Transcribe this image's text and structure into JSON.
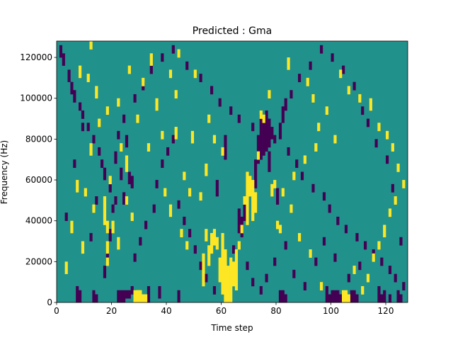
{
  "chart_data": {
    "type": "heatmap",
    "title": "Predicted : Gma",
    "xlabel": "Time step",
    "ylabel": "Frequency (Hz)",
    "xlim": [
      0,
      128
    ],
    "ylim": [
      0,
      128000
    ],
    "x_ticks": [
      0,
      20,
      40,
      60,
      80,
      100,
      120
    ],
    "y_ticks": [
      0,
      20000,
      40000,
      60000,
      80000,
      100000,
      120000
    ],
    "x_tick_labels": [
      "0",
      "20",
      "40",
      "60",
      "80",
      "100",
      "120"
    ],
    "y_tick_labels": [
      "0",
      "20000",
      "40000",
      "60000",
      "80000",
      "100000",
      "120000"
    ],
    "grid": false,
    "colormap": "viridis",
    "n_time_steps": 128,
    "n_frequency_bins": 64,
    "value_levels": {
      "low": -1,
      "mid": 0,
      "high": 1
    },
    "colors": {
      "low": "#440154",
      "mid": "#21918c",
      "high": "#fde725"
    },
    "background_value": 0,
    "cells_high": [
      [
        63,
        0,
        10
      ],
      [
        62,
        0,
        8
      ],
      [
        61,
        0,
        12
      ],
      [
        60,
        2,
        16
      ],
      [
        59,
        5,
        10
      ],
      [
        64,
        4,
        9
      ],
      [
        65,
        3,
        12
      ],
      [
        70,
        26,
        30
      ],
      [
        69,
        19,
        31
      ],
      [
        71,
        20,
        29
      ],
      [
        72,
        22,
        26
      ],
      [
        17,
        19,
        20
      ],
      [
        18,
        17,
        19
      ],
      [
        17,
        21,
        25
      ],
      [
        18,
        12,
        14
      ],
      [
        18,
        9,
        10
      ],
      [
        56,
        12,
        16
      ],
      [
        55,
        9,
        13
      ],
      [
        57,
        14,
        17
      ],
      [
        58,
        13,
        15
      ],
      [
        54,
        15,
        17
      ],
      [
        53,
        4,
        11
      ],
      [
        28,
        0,
        2
      ],
      [
        29,
        0,
        2
      ],
      [
        30,
        0,
        2
      ],
      [
        31,
        0,
        1
      ],
      [
        32,
        0,
        1
      ],
      [
        29,
        2,
        2
      ],
      [
        30,
        2,
        2
      ],
      [
        104,
        0,
        2
      ],
      [
        105,
        0,
        2
      ],
      [
        106,
        0,
        1
      ],
      [
        52,
        25,
        26
      ],
      [
        48,
        26,
        27
      ],
      [
        46,
        30,
        31
      ],
      [
        41,
        21,
        23
      ],
      [
        43,
        40,
        42
      ],
      [
        25,
        24,
        25
      ],
      [
        25,
        32,
        35
      ],
      [
        20,
        17,
        19
      ],
      [
        22,
        13,
        15
      ],
      [
        49,
        39,
        41
      ],
      [
        54,
        31,
        33
      ],
      [
        80,
        18,
        19
      ],
      [
        81,
        17,
        18
      ],
      [
        78,
        26,
        28
      ],
      [
        79,
        28,
        29
      ],
      [
        8,
        55,
        57
      ],
      [
        11,
        54,
        55
      ],
      [
        12,
        62,
        63
      ],
      [
        14,
        50,
        52
      ],
      [
        18,
        46,
        47
      ],
      [
        22,
        48,
        49
      ],
      [
        26,
        56,
        57
      ],
      [
        31,
        53,
        54
      ],
      [
        36,
        47,
        49
      ],
      [
        41,
        55,
        56
      ],
      [
        43,
        50,
        51
      ],
      [
        44,
        60,
        61
      ],
      [
        50,
        55,
        56
      ],
      [
        55,
        44,
        45
      ],
      [
        57,
        39,
        40
      ],
      [
        60,
        36,
        37
      ],
      [
        75,
        44,
        45
      ],
      [
        84,
        57,
        59
      ],
      [
        91,
        53,
        54
      ],
      [
        93,
        49,
        50
      ],
      [
        95,
        42,
        43
      ],
      [
        98,
        46,
        47
      ],
      [
        101,
        39,
        40
      ],
      [
        103,
        55,
        56
      ],
      [
        106,
        51,
        52
      ],
      [
        110,
        49,
        50
      ],
      [
        114,
        47,
        49
      ],
      [
        117,
        42,
        43
      ],
      [
        120,
        40,
        41
      ],
      [
        122,
        37,
        38
      ],
      [
        124,
        32,
        33
      ],
      [
        126,
        28,
        29
      ],
      [
        123,
        24,
        25
      ],
      [
        121,
        21,
        22
      ],
      [
        119,
        16,
        18
      ],
      [
        117,
        13,
        14
      ],
      [
        115,
        10,
        11
      ],
      [
        113,
        5,
        6
      ],
      [
        111,
        2,
        3
      ],
      [
        108,
        7,
        8
      ],
      [
        96,
        3,
        4
      ],
      [
        92,
        11,
        12
      ],
      [
        88,
        15,
        16
      ],
      [
        85,
        22,
        23
      ],
      [
        82,
        26,
        27
      ],
      [
        86,
        30,
        31
      ],
      [
        90,
        34,
        35
      ],
      [
        94,
        37,
        38
      ],
      [
        3,
        7,
        9
      ],
      [
        5,
        17,
        19
      ],
      [
        9,
        12,
        14
      ],
      [
        10,
        26,
        27
      ],
      [
        12,
        36,
        38
      ],
      [
        15,
        43,
        44
      ],
      [
        7,
        27,
        29
      ],
      [
        13,
        22,
        23
      ],
      [
        19,
        29,
        30
      ],
      [
        23,
        37,
        38
      ],
      [
        27,
        20,
        21
      ],
      [
        29,
        44,
        45
      ],
      [
        33,
        37,
        38
      ],
      [
        38,
        40,
        41
      ],
      [
        39,
        26,
        27
      ],
      [
        34,
        58,
        60
      ],
      [
        47,
        13,
        14
      ],
      [
        45,
        16,
        17
      ],
      [
        66,
        13,
        14
      ],
      [
        67,
        17,
        18
      ],
      [
        68,
        24,
        25
      ],
      [
        73,
        35,
        36
      ],
      [
        74,
        45,
        46
      ],
      [
        77,
        50,
        51
      ]
    ],
    "cells_low": [
      [
        7,
        0,
        3
      ],
      [
        8,
        0,
        2
      ],
      [
        13,
        0,
        2
      ],
      [
        14,
        0,
        1
      ],
      [
        22,
        0,
        2
      ],
      [
        23,
        0,
        2
      ],
      [
        24,
        0,
        2
      ],
      [
        25,
        1,
        2
      ],
      [
        26,
        1,
        2
      ],
      [
        27,
        2,
        3
      ],
      [
        33,
        0,
        3
      ],
      [
        37,
        1,
        3
      ],
      [
        44,
        0,
        2
      ],
      [
        81,
        0,
        2
      ],
      [
        82,
        0,
        2
      ],
      [
        83,
        0,
        1
      ],
      [
        98,
        0,
        3
      ],
      [
        99,
        0,
        1
      ],
      [
        100,
        0,
        2
      ],
      [
        101,
        0,
        2
      ],
      [
        102,
        0,
        2
      ],
      [
        103,
        0,
        1
      ],
      [
        107,
        0,
        2
      ],
      [
        108,
        0,
        2
      ],
      [
        109,
        0,
        1
      ],
      [
        117,
        0,
        3
      ],
      [
        118,
        0,
        1
      ],
      [
        119,
        0,
        2
      ],
      [
        121,
        0,
        1
      ],
      [
        124,
        0,
        2
      ],
      [
        125,
        0,
        1
      ],
      [
        73,
        34,
        40
      ],
      [
        74,
        35,
        45
      ],
      [
        75,
        36,
        43
      ],
      [
        76,
        37,
        46
      ],
      [
        77,
        38,
        44
      ],
      [
        78,
        40,
        42
      ],
      [
        66,
        17,
        22
      ],
      [
        67,
        16,
        20
      ],
      [
        68,
        20,
        24
      ],
      [
        72,
        28,
        34
      ],
      [
        61,
        35,
        40
      ],
      [
        58,
        26,
        29
      ],
      [
        80,
        24,
        27
      ],
      [
        77,
        32,
        36
      ],
      [
        81,
        40,
        43
      ],
      [
        82,
        44,
        47
      ],
      [
        83,
        47,
        49
      ],
      [
        26,
        29,
        31
      ],
      [
        27,
        28,
        30
      ],
      [
        23,
        30,
        32
      ],
      [
        24,
        24,
        26
      ],
      [
        25,
        38,
        40
      ],
      [
        17,
        6,
        8
      ],
      [
        18,
        10,
        11
      ],
      [
        19,
        15,
        17
      ],
      [
        20,
        22,
        23
      ],
      [
        21,
        24,
        25
      ],
      [
        1,
        60,
        62
      ],
      [
        2,
        58,
        60
      ],
      [
        4,
        54,
        56
      ],
      [
        5,
        51,
        53
      ],
      [
        6,
        49,
        51
      ],
      [
        8,
        47,
        48
      ],
      [
        9,
        45,
        46
      ],
      [
        11,
        42,
        43
      ],
      [
        13,
        39,
        40
      ],
      [
        15,
        36,
        37
      ],
      [
        16,
        33,
        34
      ],
      [
        17,
        30,
        32
      ],
      [
        19,
        27,
        28
      ],
      [
        21,
        34,
        36
      ],
      [
        22,
        40,
        41
      ],
      [
        24,
        44,
        45
      ],
      [
        28,
        49,
        50
      ],
      [
        31,
        52,
        53
      ],
      [
        34,
        56,
        57
      ],
      [
        38,
        59,
        60
      ],
      [
        42,
        61,
        62
      ],
      [
        47,
        57,
        58
      ],
      [
        52,
        54,
        55
      ],
      [
        56,
        51,
        52
      ],
      [
        59,
        48,
        49
      ],
      [
        63,
        46,
        47
      ],
      [
        66,
        44,
        45
      ],
      [
        71,
        42,
        43
      ],
      [
        79,
        39,
        40
      ],
      [
        84,
        36,
        37
      ],
      [
        87,
        33,
        34
      ],
      [
        89,
        30,
        31
      ],
      [
        93,
        27,
        28
      ],
      [
        97,
        25,
        26
      ],
      [
        99,
        22,
        23
      ],
      [
        102,
        19,
        20
      ],
      [
        105,
        17,
        18
      ],
      [
        109,
        15,
        16
      ],
      [
        112,
        13,
        14
      ],
      [
        115,
        11,
        12
      ],
      [
        118,
        9,
        10
      ],
      [
        121,
        7,
        8
      ],
      [
        123,
        5,
        6
      ],
      [
        126,
        3,
        4
      ],
      [
        125,
        14,
        15
      ],
      [
        122,
        27,
        28
      ],
      [
        120,
        34,
        35
      ],
      [
        116,
        38,
        39
      ],
      [
        113,
        43,
        44
      ],
      [
        111,
        46,
        47
      ],
      [
        108,
        52,
        53
      ],
      [
        104,
        56,
        57
      ],
      [
        100,
        59,
        60
      ],
      [
        96,
        61,
        62
      ],
      [
        92,
        57,
        58
      ],
      [
        88,
        54,
        55
      ],
      [
        85,
        50,
        51
      ],
      [
        3,
        20,
        21
      ],
      [
        6,
        33,
        34
      ],
      [
        9,
        42,
        43
      ],
      [
        12,
        15,
        16
      ],
      [
        14,
        24,
        25
      ],
      [
        28,
        10,
        11
      ],
      [
        30,
        14,
        15
      ],
      [
        32,
        18,
        19
      ],
      [
        35,
        22,
        23
      ],
      [
        36,
        28,
        29
      ],
      [
        38,
        33,
        34
      ],
      [
        40,
        36,
        37
      ],
      [
        42,
        39,
        40
      ],
      [
        44,
        23,
        24
      ],
      [
        46,
        19,
        20
      ],
      [
        48,
        16,
        17
      ],
      [
        50,
        12,
        13
      ],
      [
        52,
        8,
        9
      ],
      [
        54,
        5,
        6
      ],
      [
        57,
        2,
        3
      ],
      [
        64,
        12,
        13
      ],
      [
        69,
        8,
        9
      ],
      [
        71,
        4,
        5
      ],
      [
        74,
        2,
        3
      ],
      [
        76,
        5,
        6
      ],
      [
        79,
        9,
        10
      ],
      [
        83,
        13,
        14
      ],
      [
        86,
        6,
        7
      ],
      [
        90,
        3,
        4
      ],
      [
        94,
        9,
        10
      ],
      [
        97,
        14,
        15
      ],
      [
        101,
        10,
        11
      ],
      [
        106,
        5,
        6
      ],
      [
        110,
        8,
        9
      ]
    ]
  }
}
